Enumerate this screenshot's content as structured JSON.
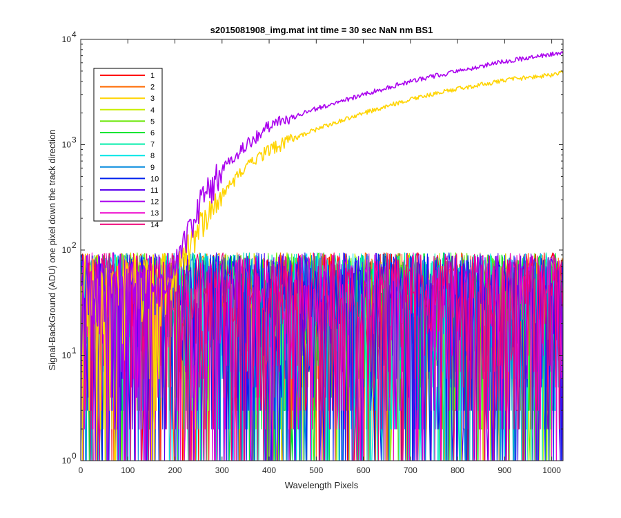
{
  "chart_data": {
    "type": "line",
    "title": "s2015081908_img.mat int time = 30 sec  NaN nm BS1",
    "xlabel": "Wavelength Pixels",
    "ylabel": "Signal-BackGround (ADU) one pixel down the track direction",
    "xlim": [
      0,
      1024
    ],
    "ylim": [
      1,
      10000
    ],
    "yscale": "log",
    "grid": false,
    "legend_position": "top-left",
    "x_ticks": [
      0,
      100,
      200,
      300,
      400,
      500,
      600,
      700,
      800,
      900,
      1000
    ],
    "y_ticks": [
      {
        "value": 1,
        "base": "10",
        "exp": "0"
      },
      {
        "value": 10,
        "base": "10",
        "exp": "1"
      },
      {
        "value": 100,
        "base": "10",
        "exp": "2"
      },
      {
        "value": 1000,
        "base": "10",
        "exp": "3"
      },
      {
        "value": 10000,
        "base": "10",
        "exp": "4"
      }
    ],
    "noise_floor": {
      "min": 1,
      "max": 95
    },
    "series": [
      {
        "name": "1",
        "color": "#ff0000",
        "type": "noise"
      },
      {
        "name": "2",
        "color": "#ff6a00",
        "type": "noise"
      },
      {
        "name": "3",
        "color": "#ffd400",
        "type": "signal",
        "points": [
          [
            180,
            35
          ],
          [
            200,
            60
          ],
          [
            250,
            160
          ],
          [
            300,
            350
          ],
          [
            350,
            600
          ],
          [
            400,
            900
          ],
          [
            500,
            1400
          ],
          [
            600,
            2000
          ],
          [
            700,
            2700
          ],
          [
            800,
            3400
          ],
          [
            900,
            4100
          ],
          [
            1000,
            4600
          ],
          [
            1024,
            4900
          ]
        ]
      },
      {
        "name": "4",
        "color": "#c8ee00",
        "type": "noise"
      },
      {
        "name": "5",
        "color": "#66e600",
        "type": "noise"
      },
      {
        "name": "6",
        "color": "#00e633",
        "type": "noise"
      },
      {
        "name": "7",
        "color": "#00eeaa",
        "type": "noise"
      },
      {
        "name": "8",
        "color": "#00e6e6",
        "type": "noise"
      },
      {
        "name": "9",
        "color": "#0088dd",
        "type": "noise"
      },
      {
        "name": "10",
        "color": "#0022ee",
        "type": "noise"
      },
      {
        "name": "11",
        "color": "#5a00ee",
        "type": "noise"
      },
      {
        "name": "12",
        "color": "#aa00ee",
        "type": "signal",
        "points": [
          [
            150,
            35
          ],
          [
            200,
            70
          ],
          [
            250,
            260
          ],
          [
            300,
            600
          ],
          [
            350,
            1000
          ],
          [
            400,
            1500
          ],
          [
            500,
            2200
          ],
          [
            600,
            3000
          ],
          [
            700,
            4000
          ],
          [
            800,
            5000
          ],
          [
            900,
            6200
          ],
          [
            1000,
            7200
          ],
          [
            1024,
            7600
          ]
        ]
      },
      {
        "name": "13",
        "color": "#ee00cc",
        "type": "noise"
      },
      {
        "name": "14",
        "color": "#ee0077",
        "type": "noise"
      }
    ]
  }
}
